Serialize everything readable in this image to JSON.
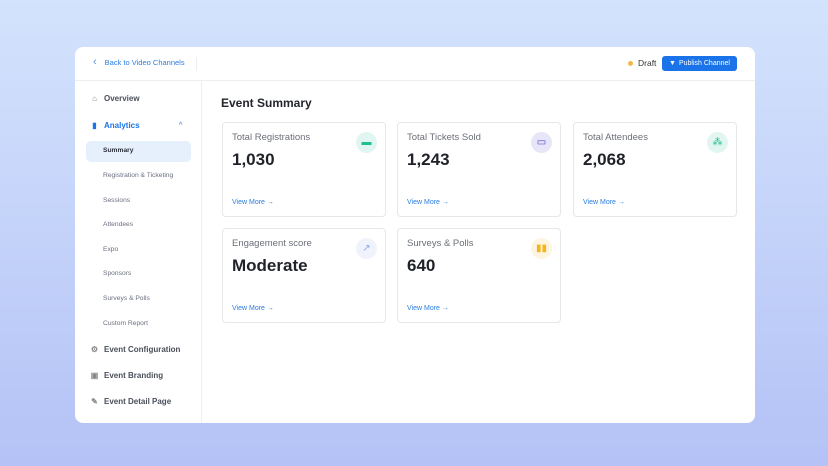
{
  "header": {
    "back_label": "Back to Video Channels",
    "status": "Draft",
    "publish_label": "Publish Channel"
  },
  "sidebar": {
    "items": [
      {
        "label": "Overview",
        "icon": "home-icon"
      },
      {
        "label": "Analytics",
        "icon": "bar-chart-icon"
      },
      {
        "label": "Event Configuration",
        "icon": "gear-icon"
      },
      {
        "label": "Event Branding",
        "icon": "image-icon"
      },
      {
        "label": "Event Detail Page",
        "icon": "pencil-icon"
      }
    ],
    "analytics_sub": [
      "Summary",
      "Registration & Ticketing",
      "Sessions",
      "Attendees",
      "Expo",
      "Sponsors",
      "Surveys & Polls",
      "Custom Report"
    ]
  },
  "main": {
    "title": "Event Summary",
    "view_more": "View More →",
    "cards": [
      {
        "label": "Total Registrations",
        "value": "1,030",
        "icon": "calendar-icon",
        "color": "#1fbf8f"
      },
      {
        "label": "Total Tickets Sold",
        "value": "1,243",
        "icon": "ticket-icon",
        "color": "#4b3fc7"
      },
      {
        "label": "Total Attendees",
        "value": "2,068",
        "icon": "people-icon",
        "color": "#1fbf8f"
      },
      {
        "label": "Engagement score",
        "value": "Moderate",
        "icon": "trend-chart-icon",
        "color": "#8fa8e8"
      },
      {
        "label": "Surveys & Polls",
        "value": "640",
        "icon": "bar-chart-icon",
        "color": "#f5b521"
      }
    ]
  },
  "colors": {
    "accent": "#1a73e8",
    "draft_dot": "#f2b84b"
  }
}
